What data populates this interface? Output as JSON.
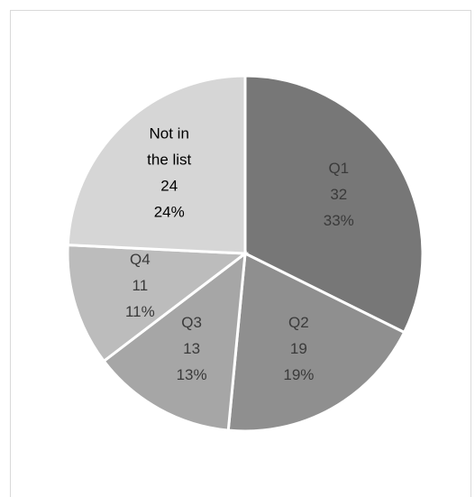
{
  "chart_data": {
    "type": "pie",
    "title": "",
    "slices": [
      {
        "label": "Q1",
        "value": 32,
        "percent": "33%",
        "color": "#777777",
        "text_color": "#3a3a3a"
      },
      {
        "label": "Q2",
        "value": 19,
        "percent": "19%",
        "color": "#8f8f8f",
        "text_color": "#3a3a3a"
      },
      {
        "label": "Q3",
        "value": 13,
        "percent": "13%",
        "color": "#a6a6a6",
        "text_color": "#3a3a3a"
      },
      {
        "label": "Q4",
        "value": 11,
        "percent": "11%",
        "color": "#bcbcbc",
        "text_color": "#3a3a3a"
      },
      {
        "label": "Not in the list",
        "value": 24,
        "percent": "24%",
        "color": "#d6d6d6",
        "text_color": "#000000"
      }
    ],
    "start_angle_deg": 0,
    "direction": "clockwise",
    "slice_border_color": "#ffffff",
    "legend": "none"
  }
}
